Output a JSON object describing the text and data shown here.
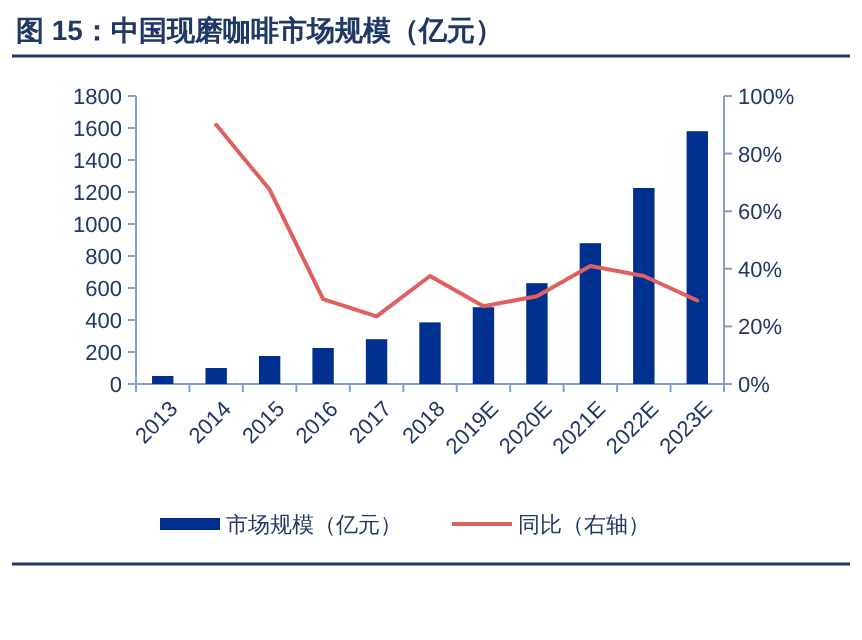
{
  "chart_data": {
    "type": "bar",
    "title": "图 15：中国现磨咖啡市场规模（亿元）",
    "categories": [
      "2013",
      "2014",
      "2015",
      "2016",
      "2017",
      "2018",
      "2019E",
      "2020E",
      "2021E",
      "2022E",
      "2023E"
    ],
    "series": [
      {
        "name": "市场规模（亿元）",
        "color": "#00308f",
        "values": [
          50,
          100,
          175,
          225,
          280,
          385,
          480,
          630,
          880,
          1225,
          1580
        ]
      },
      {
        "name": "同比（右轴）",
        "type": "line",
        "axis": "y2",
        "color": "#e06060",
        "values": [
          null,
          90,
          67.5,
          29.5,
          23.5,
          37.5,
          27,
          30.5,
          41,
          37.5,
          29
        ]
      }
    ],
    "ylim": [
      0,
      1800
    ],
    "yticks": [
      0,
      200,
      400,
      600,
      800,
      1000,
      1200,
      1400,
      1600,
      1800
    ],
    "y2lim": [
      0,
      100
    ],
    "y2ticks": [
      {
        "value": 0,
        "label": "0%"
      },
      {
        "value": 20,
        "label": "20%"
      },
      {
        "value": 40,
        "label": "40%"
      },
      {
        "value": 60,
        "label": "60%"
      },
      {
        "value": 80,
        "label": "80%"
      },
      {
        "value": 100,
        "label": "100%"
      }
    ],
    "legend": "bottom",
    "grid": false,
    "marker": "none",
    "line_style": "solid"
  }
}
